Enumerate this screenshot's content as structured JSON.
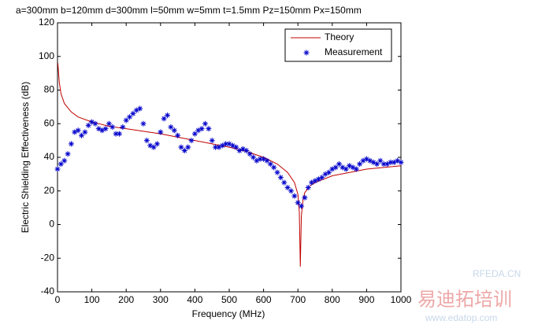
{
  "chart_data": {
    "type": "line",
    "title": "a=300mm b=120mm d=300mm l=50mm w=5mm t=1.5mm Pz=150mm Px=150mm",
    "x_label": "Frequency (MHz)",
    "y_label": "Electric Shielding Effectiveness (dB)",
    "xlim": [
      0,
      1000
    ],
    "ylim": [
      -40,
      120
    ],
    "xticks": [
      0,
      100,
      200,
      300,
      400,
      500,
      600,
      700,
      800,
      900,
      1000
    ],
    "yticks": [
      -40,
      -20,
      0,
      20,
      40,
      60,
      80,
      100,
      120
    ],
    "grid": false,
    "legend": "upper right",
    "series": [
      {
        "name": "Theory",
        "color": "#c00000",
        "marker": "none",
        "x": [
          1,
          5,
          10,
          20,
          40,
          60,
          100,
          150,
          200,
          250,
          300,
          350,
          400,
          450,
          500,
          550,
          600,
          640,
          670,
          690,
          700,
          704,
          707,
          710,
          715,
          720,
          735,
          750,
          800,
          850,
          900,
          950,
          1000
        ],
        "values": [
          96,
          85,
          78,
          72,
          67,
          64,
          61,
          58.5,
          57,
          55.5,
          54,
          52,
          50,
          48,
          46,
          43.5,
          40,
          36,
          31,
          25,
          18,
          8,
          -25,
          5,
          15,
          19,
          23,
          25,
          29,
          31,
          33,
          34,
          35
        ]
      },
      {
        "name": "Measurement",
        "color": "#0000cc",
        "marker": "*",
        "x": [
          0,
          10,
          20,
          30,
          40,
          50,
          60,
          70,
          80,
          90,
          100,
          110,
          120,
          130,
          140,
          150,
          160,
          170,
          180,
          190,
          200,
          210,
          220,
          230,
          240,
          250,
          260,
          270,
          280,
          290,
          300,
          310,
          320,
          330,
          340,
          350,
          360,
          370,
          380,
          390,
          400,
          410,
          420,
          430,
          440,
          450,
          460,
          470,
          480,
          490,
          500,
          510,
          520,
          530,
          540,
          550,
          560,
          570,
          580,
          590,
          600,
          610,
          620,
          630,
          640,
          650,
          660,
          670,
          680,
          690,
          700,
          710,
          720,
          730,
          740,
          750,
          760,
          770,
          780,
          790,
          800,
          810,
          820,
          830,
          840,
          850,
          860,
          870,
          880,
          890,
          900,
          910,
          920,
          930,
          940,
          950,
          960,
          970,
          980,
          990,
          1000
        ],
        "values": [
          33,
          36,
          38,
          42,
          48,
          55,
          56,
          53,
          55,
          59,
          61,
          60,
          57,
          56,
          57,
          60,
          58,
          54,
          54,
          58,
          62,
          64,
          66,
          68,
          69,
          60,
          50,
          47,
          46,
          48,
          55,
          63,
          65,
          58,
          56,
          53,
          46,
          44,
          46,
          50,
          54,
          56,
          57,
          60,
          57,
          50,
          46,
          46,
          47,
          48,
          48,
          47,
          46,
          44,
          45,
          44,
          42,
          40,
          38,
          39,
          39,
          38,
          36,
          34,
          31,
          28,
          25,
          22,
          20,
          17,
          13,
          11,
          16,
          22,
          25,
          26,
          27,
          28,
          30,
          31,
          33,
          34,
          36,
          34,
          33,
          35,
          34,
          33,
          36,
          38,
          39,
          38,
          37,
          36,
          38,
          36,
          36,
          37,
          37,
          38,
          37
        ]
      }
    ]
  },
  "watermarks": [
    "RFEDA.CN",
    "www.edatop.com",
    "易迪拓培训"
  ]
}
